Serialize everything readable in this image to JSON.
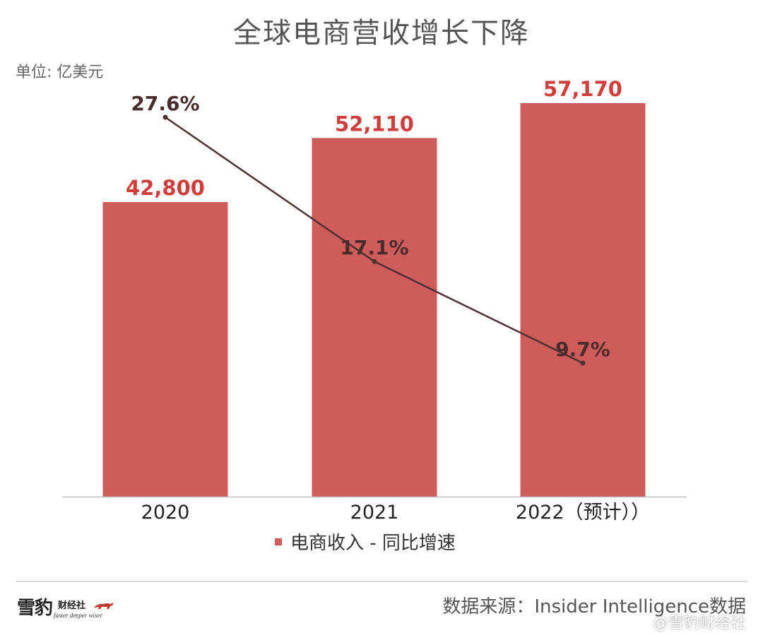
{
  "header": {
    "title": "全球电商营收增长下降",
    "unit": "单位: 亿美元"
  },
  "colors": {
    "bar": "#cd5c5a",
    "bar_label": "#d13d3a",
    "line": "#4d3030",
    "rate_label": "#4a2c2c"
  },
  "chart_data": {
    "type": "bar",
    "categories": [
      "2020",
      "2021",
      "2022（预计））"
    ],
    "series": [
      {
        "name": "电商收入",
        "type": "bar",
        "values": [
          42800,
          52110,
          57170
        ],
        "labels": [
          "42,800",
          "52,110",
          "57,170"
        ]
      },
      {
        "name": "同比增速",
        "type": "line",
        "values": [
          27.6,
          17.1,
          9.7
        ],
        "labels": [
          "27.6%",
          "17.1%",
          "9.7%"
        ]
      }
    ],
    "legend": {
      "position": "bottom",
      "text": "电商收入 - 同比增速"
    },
    "title": "全球电商营收增长下降",
    "ylabel": "单位: 亿美元",
    "ylim": [
      0,
      60000
    ],
    "grid": false
  },
  "footer": {
    "logo_main": "雪豹",
    "logo_sub": "财经社",
    "logo_tagline": "faster deeper wiser",
    "source": "数据来源：Insider Intelligence数据",
    "credit": "@雪豹财经社"
  }
}
